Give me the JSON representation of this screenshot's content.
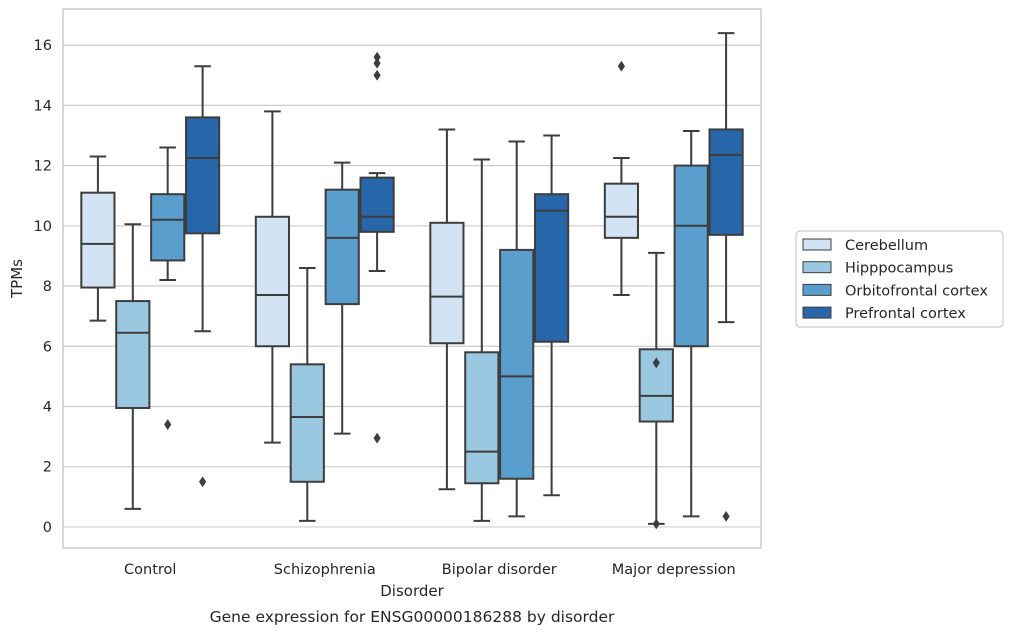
{
  "chart_data": {
    "type": "box",
    "caption": "Gene expression for ENSG00000186288 by disorder",
    "xlabel": "Disorder",
    "ylabel": "TPMs",
    "ylim": [
      -0.7,
      17.2
    ],
    "yticks": [
      0,
      2,
      4,
      6,
      8,
      10,
      12,
      14,
      16
    ],
    "grid": "horizontal",
    "legend_position": "right",
    "categories": [
      "Control",
      "Schizophrenia",
      "Bipolar disorder",
      "Major depression"
    ],
    "series": [
      {
        "name": "Cerebellum",
        "color": "#d2e3f3",
        "boxes": [
          {
            "whislo": 6.85,
            "q1": 7.95,
            "med": 9.4,
            "q3": 11.1,
            "whishi": 12.3,
            "fliers": []
          },
          {
            "whislo": 2.8,
            "q1": 6.0,
            "med": 7.7,
            "q3": 10.3,
            "whishi": 13.8,
            "fliers": []
          },
          {
            "whislo": 1.25,
            "q1": 6.1,
            "med": 7.65,
            "q3": 10.1,
            "whishi": 13.2,
            "fliers": []
          },
          {
            "whislo": 7.7,
            "q1": 9.6,
            "med": 10.3,
            "q3": 11.4,
            "whishi": 12.25,
            "fliers": [
              15.3
            ]
          }
        ]
      },
      {
        "name": "Hipppocampus",
        "color": "#9ac8e0",
        "boxes": [
          {
            "whislo": 0.6,
            "q1": 3.95,
            "med": 6.45,
            "q3": 7.5,
            "whishi": 10.05,
            "fliers": []
          },
          {
            "whislo": 0.2,
            "q1": 1.5,
            "med": 3.65,
            "q3": 5.4,
            "whishi": 8.6,
            "fliers": []
          },
          {
            "whislo": 0.2,
            "q1": 1.45,
            "med": 2.5,
            "q3": 5.8,
            "whishi": 12.2,
            "fliers": []
          },
          {
            "whislo": 0.1,
            "q1": 3.5,
            "med": 4.35,
            "q3": 5.9,
            "whishi": 9.1,
            "fliers": [
              5.45,
              0.1
            ]
          }
        ]
      },
      {
        "name": "Orbitofrontal cortex",
        "color": "#5a9ecd",
        "boxes": [
          {
            "whislo": 8.2,
            "q1": 8.85,
            "med": 10.2,
            "q3": 11.05,
            "whishi": 12.6,
            "fliers": [
              3.4
            ]
          },
          {
            "whislo": 3.1,
            "q1": 7.4,
            "med": 9.6,
            "q3": 11.2,
            "whishi": 12.1,
            "fliers": []
          },
          {
            "whislo": 0.35,
            "q1": 1.6,
            "med": 5.0,
            "q3": 9.2,
            "whishi": 12.8,
            "fliers": []
          },
          {
            "whislo": 0.35,
            "q1": 6.0,
            "med": 10.0,
            "q3": 12.0,
            "whishi": 13.15,
            "fliers": []
          }
        ]
      },
      {
        "name": "Prefrontal cortex",
        "color": "#2766a8",
        "boxes": [
          {
            "whislo": 6.5,
            "q1": 9.75,
            "med": 12.25,
            "q3": 13.6,
            "whishi": 15.3,
            "fliers": [
              1.5
            ]
          },
          {
            "whislo": 8.5,
            "q1": 9.8,
            "med": 10.3,
            "q3": 11.6,
            "whishi": 11.75,
            "fliers": [
              15.6,
              15.4,
              15.0,
              2.95
            ]
          },
          {
            "whislo": 1.05,
            "q1": 6.15,
            "med": 10.5,
            "q3": 11.05,
            "whishi": 13.0,
            "fliers": []
          },
          {
            "whislo": 6.8,
            "q1": 9.7,
            "med": 12.35,
            "q3": 13.2,
            "whishi": 16.4,
            "fliers": [
              0.35
            ]
          }
        ]
      }
    ]
  }
}
